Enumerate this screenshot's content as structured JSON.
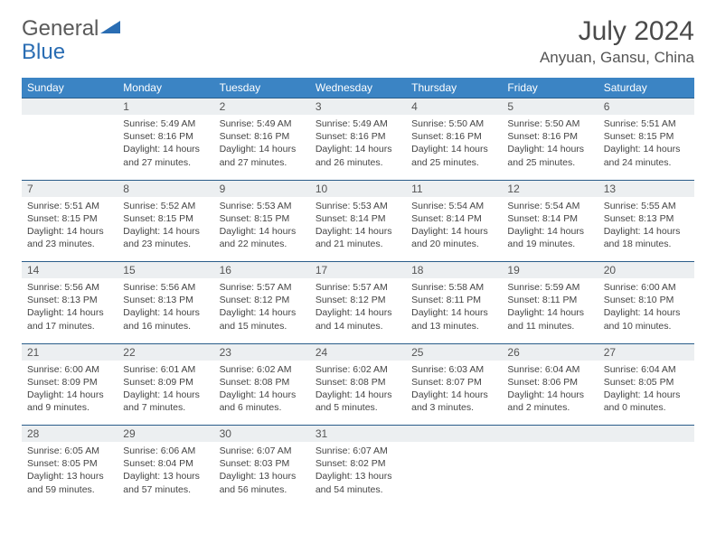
{
  "logo": {
    "text1": "General",
    "text2": "Blue"
  },
  "title": "July 2024",
  "location": "Anyuan, Gansu, China",
  "header_bg": "#3b84c4",
  "daynum_bg": "#eceff1",
  "border_color": "#2a5d8a",
  "days_of_week": [
    "Sunday",
    "Monday",
    "Tuesday",
    "Wednesday",
    "Thursday",
    "Friday",
    "Saturday"
  ],
  "weeks": [
    {
      "nums": [
        "",
        "1",
        "2",
        "3",
        "4",
        "5",
        "6"
      ],
      "cells": [
        {},
        {
          "sunrise": "Sunrise: 5:49 AM",
          "sunset": "Sunset: 8:16 PM",
          "day1": "Daylight: 14 hours",
          "day2": "and 27 minutes."
        },
        {
          "sunrise": "Sunrise: 5:49 AM",
          "sunset": "Sunset: 8:16 PM",
          "day1": "Daylight: 14 hours",
          "day2": "and 27 minutes."
        },
        {
          "sunrise": "Sunrise: 5:49 AM",
          "sunset": "Sunset: 8:16 PM",
          "day1": "Daylight: 14 hours",
          "day2": "and 26 minutes."
        },
        {
          "sunrise": "Sunrise: 5:50 AM",
          "sunset": "Sunset: 8:16 PM",
          "day1": "Daylight: 14 hours",
          "day2": "and 25 minutes."
        },
        {
          "sunrise": "Sunrise: 5:50 AM",
          "sunset": "Sunset: 8:16 PM",
          "day1": "Daylight: 14 hours",
          "day2": "and 25 minutes."
        },
        {
          "sunrise": "Sunrise: 5:51 AM",
          "sunset": "Sunset: 8:15 PM",
          "day1": "Daylight: 14 hours",
          "day2": "and 24 minutes."
        }
      ]
    },
    {
      "nums": [
        "7",
        "8",
        "9",
        "10",
        "11",
        "12",
        "13"
      ],
      "cells": [
        {
          "sunrise": "Sunrise: 5:51 AM",
          "sunset": "Sunset: 8:15 PM",
          "day1": "Daylight: 14 hours",
          "day2": "and 23 minutes."
        },
        {
          "sunrise": "Sunrise: 5:52 AM",
          "sunset": "Sunset: 8:15 PM",
          "day1": "Daylight: 14 hours",
          "day2": "and 23 minutes."
        },
        {
          "sunrise": "Sunrise: 5:53 AM",
          "sunset": "Sunset: 8:15 PM",
          "day1": "Daylight: 14 hours",
          "day2": "and 22 minutes."
        },
        {
          "sunrise": "Sunrise: 5:53 AM",
          "sunset": "Sunset: 8:14 PM",
          "day1": "Daylight: 14 hours",
          "day2": "and 21 minutes."
        },
        {
          "sunrise": "Sunrise: 5:54 AM",
          "sunset": "Sunset: 8:14 PM",
          "day1": "Daylight: 14 hours",
          "day2": "and 20 minutes."
        },
        {
          "sunrise": "Sunrise: 5:54 AM",
          "sunset": "Sunset: 8:14 PM",
          "day1": "Daylight: 14 hours",
          "day2": "and 19 minutes."
        },
        {
          "sunrise": "Sunrise: 5:55 AM",
          "sunset": "Sunset: 8:13 PM",
          "day1": "Daylight: 14 hours",
          "day2": "and 18 minutes."
        }
      ]
    },
    {
      "nums": [
        "14",
        "15",
        "16",
        "17",
        "18",
        "19",
        "20"
      ],
      "cells": [
        {
          "sunrise": "Sunrise: 5:56 AM",
          "sunset": "Sunset: 8:13 PM",
          "day1": "Daylight: 14 hours",
          "day2": "and 17 minutes."
        },
        {
          "sunrise": "Sunrise: 5:56 AM",
          "sunset": "Sunset: 8:13 PM",
          "day1": "Daylight: 14 hours",
          "day2": "and 16 minutes."
        },
        {
          "sunrise": "Sunrise: 5:57 AM",
          "sunset": "Sunset: 8:12 PM",
          "day1": "Daylight: 14 hours",
          "day2": "and 15 minutes."
        },
        {
          "sunrise": "Sunrise: 5:57 AM",
          "sunset": "Sunset: 8:12 PM",
          "day1": "Daylight: 14 hours",
          "day2": "and 14 minutes."
        },
        {
          "sunrise": "Sunrise: 5:58 AM",
          "sunset": "Sunset: 8:11 PM",
          "day1": "Daylight: 14 hours",
          "day2": "and 13 minutes."
        },
        {
          "sunrise": "Sunrise: 5:59 AM",
          "sunset": "Sunset: 8:11 PM",
          "day1": "Daylight: 14 hours",
          "day2": "and 11 minutes."
        },
        {
          "sunrise": "Sunrise: 6:00 AM",
          "sunset": "Sunset: 8:10 PM",
          "day1": "Daylight: 14 hours",
          "day2": "and 10 minutes."
        }
      ]
    },
    {
      "nums": [
        "21",
        "22",
        "23",
        "24",
        "25",
        "26",
        "27"
      ],
      "cells": [
        {
          "sunrise": "Sunrise: 6:00 AM",
          "sunset": "Sunset: 8:09 PM",
          "day1": "Daylight: 14 hours",
          "day2": "and 9 minutes."
        },
        {
          "sunrise": "Sunrise: 6:01 AM",
          "sunset": "Sunset: 8:09 PM",
          "day1": "Daylight: 14 hours",
          "day2": "and 7 minutes."
        },
        {
          "sunrise": "Sunrise: 6:02 AM",
          "sunset": "Sunset: 8:08 PM",
          "day1": "Daylight: 14 hours",
          "day2": "and 6 minutes."
        },
        {
          "sunrise": "Sunrise: 6:02 AM",
          "sunset": "Sunset: 8:08 PM",
          "day1": "Daylight: 14 hours",
          "day2": "and 5 minutes."
        },
        {
          "sunrise": "Sunrise: 6:03 AM",
          "sunset": "Sunset: 8:07 PM",
          "day1": "Daylight: 14 hours",
          "day2": "and 3 minutes."
        },
        {
          "sunrise": "Sunrise: 6:04 AM",
          "sunset": "Sunset: 8:06 PM",
          "day1": "Daylight: 14 hours",
          "day2": "and 2 minutes."
        },
        {
          "sunrise": "Sunrise: 6:04 AM",
          "sunset": "Sunset: 8:05 PM",
          "day1": "Daylight: 14 hours",
          "day2": "and 0 minutes."
        }
      ]
    },
    {
      "nums": [
        "28",
        "29",
        "30",
        "31",
        "",
        "",
        ""
      ],
      "cells": [
        {
          "sunrise": "Sunrise: 6:05 AM",
          "sunset": "Sunset: 8:05 PM",
          "day1": "Daylight: 13 hours",
          "day2": "and 59 minutes."
        },
        {
          "sunrise": "Sunrise: 6:06 AM",
          "sunset": "Sunset: 8:04 PM",
          "day1": "Daylight: 13 hours",
          "day2": "and 57 minutes."
        },
        {
          "sunrise": "Sunrise: 6:07 AM",
          "sunset": "Sunset: 8:03 PM",
          "day1": "Daylight: 13 hours",
          "day2": "and 56 minutes."
        },
        {
          "sunrise": "Sunrise: 6:07 AM",
          "sunset": "Sunset: 8:02 PM",
          "day1": "Daylight: 13 hours",
          "day2": "and 54 minutes."
        },
        {},
        {},
        {}
      ]
    }
  ]
}
